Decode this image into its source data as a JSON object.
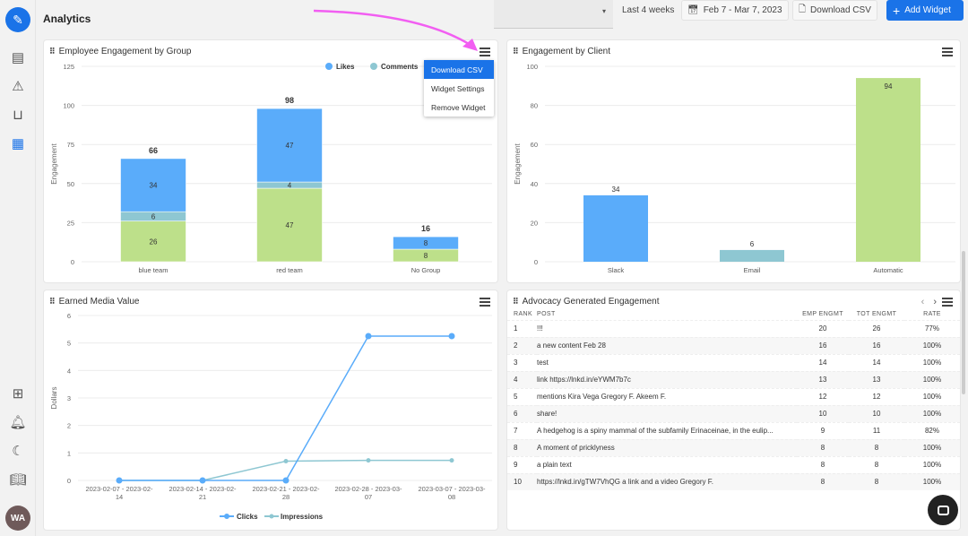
{
  "header": {
    "title": "Analytics",
    "range_label": "Last 4 weeks",
    "date_range": "Feb 7 - Mar 7, 2023",
    "download_csv": "Download CSV",
    "add_widget": "Add Widget",
    "select_caret": "▾"
  },
  "sidebar": {
    "avatar_initials": "WA",
    "items": [
      "compose",
      "news",
      "alerts",
      "inbox",
      "analytics",
      "apps",
      "notifications",
      "dark-mode",
      "docs"
    ]
  },
  "colors": {
    "accent": "#1a73e8",
    "likes": "#5aacfa",
    "comments": "#8ec7d2",
    "green": "#bde08a",
    "arrow": "#f25ef2"
  },
  "widget_menu": {
    "items": [
      "Download CSV",
      "Widget Settings",
      "Remove Widget"
    ],
    "active": 0
  },
  "chart_data": [
    {
      "type": "bar",
      "stacked": true,
      "title": "Employee Engagement by Group",
      "ylabel": "Engagement",
      "ylim": [
        0,
        125
      ],
      "yticks": [
        0,
        25,
        50,
        75,
        100,
        125
      ],
      "legend": "top-right",
      "grid": true,
      "categories": [
        "blue team",
        "red team",
        "No Group"
      ],
      "series": [
        {
          "name": "",
          "values": [
            26,
            47,
            8
          ]
        },
        {
          "name": "Comments",
          "values": [
            6,
            4,
            0
          ]
        },
        {
          "name": "Likes",
          "values": [
            34,
            47,
            8
          ]
        }
      ],
      "totals": [
        66,
        98,
        16
      ]
    },
    {
      "type": "bar",
      "title": "Engagement by Client",
      "ylabel": "Engagement",
      "ylim": [
        0,
        100
      ],
      "yticks": [
        0,
        20,
        40,
        60,
        80,
        100
      ],
      "grid": true,
      "categories": [
        "Slack",
        "Email",
        "Automatic"
      ],
      "values": [
        34,
        6,
        94
      ]
    },
    {
      "type": "line",
      "title": "Earned Media Value",
      "ylabel": "Dollars",
      "ylim": [
        0,
        6
      ],
      "yticks": [
        0,
        1,
        2,
        3,
        4,
        5,
        6
      ],
      "grid": true,
      "legend": "bottom",
      "categories": [
        [
          "2023-02-07 - 2023-02-",
          "14"
        ],
        [
          "2023-02-14 - 2023-02-",
          "21"
        ],
        [
          "2023-02-21 - 2023-02-",
          "28"
        ],
        [
          "2023-02-28 - 2023-03-",
          "07"
        ],
        [
          "2023-03-07 - 2023-03-",
          "08"
        ]
      ],
      "series": [
        {
          "name": "Clicks",
          "values": [
            0,
            0,
            0,
            5.25,
            5.25
          ]
        },
        {
          "name": "Impressions",
          "values": [
            0,
            0,
            0.7,
            0.73,
            0.73
          ]
        }
      ]
    }
  ],
  "table": {
    "title": "Advocacy Generated Engagement",
    "prev": "‹",
    "next": "›",
    "columns": [
      "RANK",
      "POST",
      "EMP ENGMT",
      "TOT ENGMT",
      "RATE"
    ],
    "rows": [
      [
        "1",
        "!!!",
        "20",
        "26",
        "77%"
      ],
      [
        "2",
        "a new content Feb 28",
        "16",
        "16",
        "100%"
      ],
      [
        "3",
        "test",
        "14",
        "14",
        "100%"
      ],
      [
        "4",
        "link https://lnkd.in/eYWM7b7c",
        "13",
        "13",
        "100%"
      ],
      [
        "5",
        "mentions Kira Vega Gregory F. Akeem F.",
        "12",
        "12",
        "100%"
      ],
      [
        "6",
        "share!",
        "10",
        "10",
        "100%"
      ],
      [
        "7",
        "A hedgehog is a spiny mammal of the subfamily Erinaceinae, in the eulip...",
        "9",
        "11",
        "82%"
      ],
      [
        "8",
        "A moment of pricklyness",
        "8",
        "8",
        "100%"
      ],
      [
        "9",
        "a plain text",
        "8",
        "8",
        "100%"
      ],
      [
        "10",
        "https://lnkd.in/gTW7VhQG a link and a video Gregory F.",
        "8",
        "8",
        "100%"
      ]
    ]
  }
}
